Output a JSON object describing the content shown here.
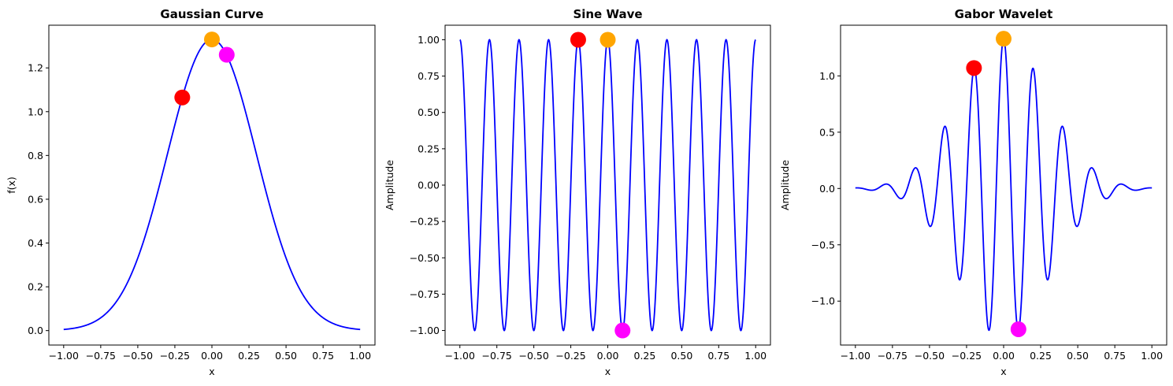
{
  "chart_data": [
    {
      "type": "line",
      "title": "Gaussian Curve",
      "xlabel": "x",
      "ylabel": "f(x)",
      "xlim": [
        -1.1,
        1.1
      ],
      "ylim": [
        -0.066,
        1.395
      ],
      "xticks": [
        -1.0,
        -0.75,
        -0.5,
        -0.25,
        0.0,
        0.25,
        0.5,
        0.75,
        1.0
      ],
      "xtick_labels": [
        "−1.00",
        "−0.75",
        "−0.50",
        "−0.25",
        "0.00",
        "0.25",
        "0.50",
        "0.75",
        "1.00"
      ],
      "yticks": [
        0.0,
        0.2,
        0.4,
        0.6,
        0.8,
        1.0,
        1.2
      ],
      "ytick_labels": [
        "0.0",
        "0.2",
        "0.4",
        "0.6",
        "0.8",
        "1.0",
        "1.2"
      ],
      "series": [
        {
          "color": "#0000ff",
          "function": "gaussian",
          "x_range": [
            -1.0,
            1.0
          ],
          "amplitude": 1.33,
          "sigma": 0.3
        }
      ],
      "markers": [
        {
          "x": -0.2,
          "y": 1.065,
          "color": "#ff0000"
        },
        {
          "x": 0.0,
          "y": 1.33,
          "color": "#ffa500"
        },
        {
          "x": 0.1,
          "y": 1.26,
          "color": "#ff00ff"
        }
      ]
    },
    {
      "type": "line",
      "title": "Sine Wave",
      "xlabel": "x",
      "ylabel": "Amplitude",
      "xlim": [
        -1.1,
        1.1
      ],
      "ylim": [
        -1.1,
        1.1
      ],
      "xticks": [
        -1.0,
        -0.75,
        -0.5,
        -0.25,
        0.0,
        0.25,
        0.5,
        0.75,
        1.0
      ],
      "xtick_labels": [
        "−1.00",
        "−0.75",
        "−0.50",
        "−0.25",
        "0.00",
        "0.25",
        "0.50",
        "0.75",
        "1.00"
      ],
      "yticks": [
        -1.0,
        -0.75,
        -0.5,
        -0.25,
        0.0,
        0.25,
        0.5,
        0.75,
        1.0
      ],
      "ytick_labels": [
        "−1.00",
        "−0.75",
        "−0.50",
        "−0.25",
        "0.00",
        "0.25",
        "0.50",
        "0.75",
        "1.00"
      ],
      "series": [
        {
          "color": "#0000ff",
          "function": "cosine",
          "x_range": [
            -1.0,
            1.0
          ],
          "amplitude": 1.0,
          "frequency": 5
        }
      ],
      "markers": [
        {
          "x": -0.2,
          "y": 1.0,
          "color": "#ff0000"
        },
        {
          "x": 0.0,
          "y": 1.0,
          "color": "#ffa500"
        },
        {
          "x": 0.1,
          "y": -1.0,
          "color": "#ff00ff"
        }
      ]
    },
    {
      "type": "line",
      "title": "Gabor Wavelet",
      "xlabel": "x",
      "ylabel": "Amplitude",
      "xlim": [
        -1.1,
        1.1
      ],
      "ylim": [
        -1.39,
        1.45
      ],
      "xticks": [
        -1.0,
        -0.75,
        -0.5,
        -0.25,
        0.0,
        0.25,
        0.5,
        0.75,
        1.0
      ],
      "xtick_labels": [
        "−1.00",
        "−0.75",
        "−0.50",
        "−0.25",
        "0.00",
        "0.25",
        "0.50",
        "0.75",
        "1.00"
      ],
      "yticks": [
        -1.0,
        -0.5,
        0.0,
        0.5,
        1.0
      ],
      "ytick_labels": [
        "−1.0",
        "−0.5",
        "0.0",
        "0.5",
        "1.0"
      ],
      "series": [
        {
          "color": "#0000ff",
          "function": "gabor",
          "x_range": [
            -1.0,
            1.0
          ],
          "amplitude": 1.33,
          "sigma": 0.3,
          "frequency": 5
        }
      ],
      "markers": [
        {
          "x": -0.2,
          "y": 1.07,
          "color": "#ff0000"
        },
        {
          "x": 0.0,
          "y": 1.33,
          "color": "#ffa500"
        },
        {
          "x": 0.1,
          "y": -1.25,
          "color": "#ff00ff"
        }
      ]
    }
  ]
}
